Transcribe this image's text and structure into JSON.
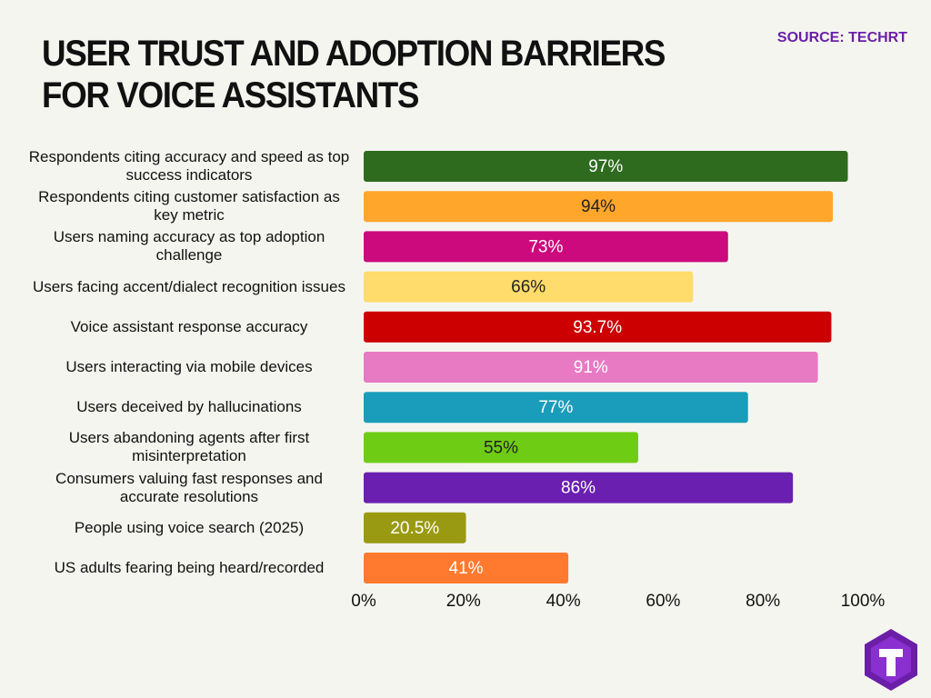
{
  "chart_data": {
    "type": "bar",
    "orientation": "horizontal",
    "title": "USER TRUST AND ADOPTION BARRIERS FOR VOICE ASSISTANTS",
    "source": "SOURCE: TECHRT",
    "categories": [
      "Respondents citing accuracy and speed as top success indicators",
      "Respondents citing customer satisfaction as key metric",
      "Users naming accuracy as top adoption challenge",
      "Users facing accent/dialect recognition issues",
      "Voice assistant response accuracy",
      "Users interacting via mobile devices",
      "Users deceived by hallucinations",
      "Users abandoning agents after first misinterpretation",
      "Consumers valuing fast responses and accurate resolutions",
      "People using voice search (2025)",
      "US adults fearing being heard/recorded"
    ],
    "values": [
      97,
      94,
      73,
      66,
      93.7,
      91,
      77,
      55,
      86,
      20.5,
      41
    ],
    "value_labels": [
      "97%",
      "94%",
      "73%",
      "66%",
      "93.7%",
      "91%",
      "77%",
      "55%",
      "86%",
      "20.5%",
      "41%"
    ],
    "colors": [
      "#2e6b1f",
      "#ffa62b",
      "#cc0a7d",
      "#ffdc6b",
      "#cc0000",
      "#e87ac4",
      "#1a9dba",
      "#6fcc14",
      "#6a1fb0",
      "#9a9a12",
      "#ff7a2e"
    ],
    "value_label_colors": [
      "#ffffff",
      "#222222",
      "#ffffff",
      "#222222",
      "#ffffff",
      "#ffffff",
      "#ffffff",
      "#222222",
      "#ffffff",
      "#ffffff",
      "#ffffff"
    ],
    "xlim": [
      0,
      100
    ],
    "xticks": [
      {
        "value": 0,
        "label": "0%"
      },
      {
        "value": 20,
        "label": "20%"
      },
      {
        "value": 40,
        "label": "40%"
      },
      {
        "value": 60,
        "label": "60%"
      },
      {
        "value": 80,
        "label": "80%"
      },
      {
        "value": 100,
        "label": "100%"
      }
    ]
  }
}
